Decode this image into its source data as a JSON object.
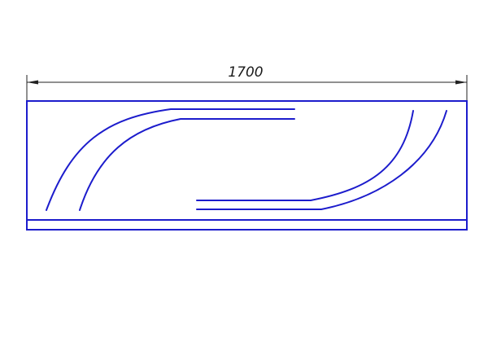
{
  "drawing": {
    "dimension_label": "1700",
    "line_color": "#1c1ccc",
    "dimension_color": "#222222"
  }
}
